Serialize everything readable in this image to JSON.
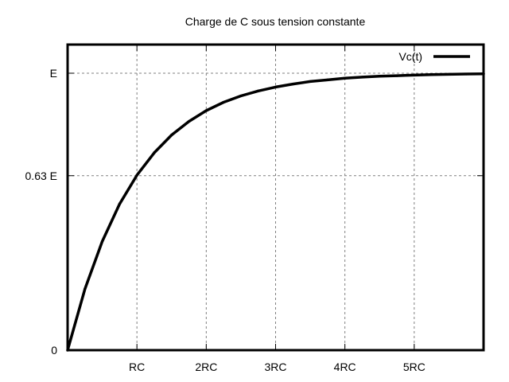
{
  "chart_data": {
    "type": "line",
    "title": "Charge de C sous tension constante",
    "xlabel": "",
    "ylabel": "",
    "xlim": [
      0,
      6
    ],
    "ylim": [
      0,
      1
    ],
    "grid": true,
    "legend_position": "top-right",
    "x_ticks": [
      {
        "value": 1,
        "label": "RC"
      },
      {
        "value": 2,
        "label": "2RC"
      },
      {
        "value": 3,
        "label": "3RC"
      },
      {
        "value": 4,
        "label": "4RC"
      },
      {
        "value": 5,
        "label": "5RC"
      }
    ],
    "y_ticks": [
      {
        "value": 0,
        "label": "0"
      },
      {
        "value": 0.63,
        "label": "0.63 E"
      },
      {
        "value": 1,
        "label": "E"
      }
    ],
    "series": [
      {
        "name": "Vc(t)",
        "x": [
          0,
          0.25,
          0.5,
          0.75,
          1,
          1.25,
          1.5,
          1.75,
          2,
          2.25,
          2.5,
          2.75,
          3,
          3.25,
          3.5,
          3.75,
          4,
          4.25,
          4.5,
          4.75,
          5,
          5.25,
          5.5,
          5.75,
          6
        ],
        "y": [
          0,
          0.221,
          0.393,
          0.528,
          0.632,
          0.713,
          0.777,
          0.826,
          0.865,
          0.895,
          0.918,
          0.936,
          0.95,
          0.961,
          0.97,
          0.976,
          0.982,
          0.986,
          0.989,
          0.991,
          0.993,
          0.995,
          0.996,
          0.997,
          0.998
        ]
      }
    ],
    "colors": {
      "line": "#000000",
      "grid": "#808080",
      "axis": "#000000"
    }
  }
}
